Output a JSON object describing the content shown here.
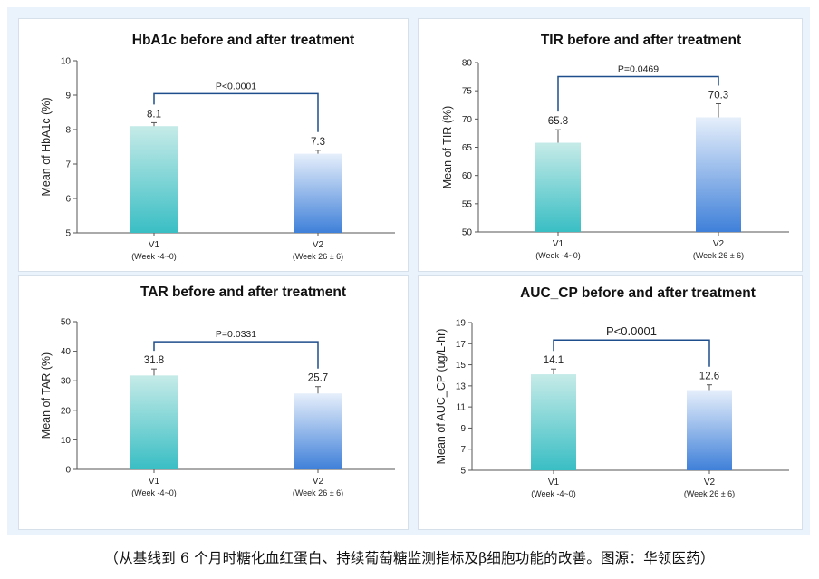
{
  "caption": "（从基线到 6 个月时糖化血红蛋白、持续葡萄糖监测指标及β细胞功能的改善。图源：华领医药）",
  "colors": {
    "v1_top": "#c6ebe8",
    "v1_bottom": "#39bec4",
    "v2_top": "#e6effb",
    "v2_bottom": "#3f80d9",
    "bracket": "#1f4e8c",
    "axis": "#555555",
    "text": "#222222"
  },
  "chart_data": [
    {
      "type": "bar",
      "title": "HbA1c before and after treatment",
      "ylabel": "Mean of HbA1c (%)",
      "ylim": [
        5,
        10
      ],
      "yticks": [
        "5",
        "6",
        "7",
        "8",
        "9",
        "10"
      ],
      "categories": [
        "V1",
        "V2"
      ],
      "category_sublabels": [
        "(Week -4~0)",
        "(Week 26 ± 6)"
      ],
      "values": [
        8.1,
        7.3
      ],
      "value_labels": [
        "8.1",
        "7.3"
      ],
      "error": [
        0.1,
        0.1
      ],
      "p_value": "P<0.0001"
    },
    {
      "type": "bar",
      "title": "TIR before and after treatment",
      "ylabel": "Mean of TIR (%)",
      "ylim": [
        50,
        80
      ],
      "yticks": [
        "50",
        "55",
        "60",
        "65",
        "70",
        "75",
        "80"
      ],
      "categories": [
        "V1",
        "V2"
      ],
      "category_sublabels": [
        "(Week -4~0)",
        "(Week 26 ± 6)"
      ],
      "values": [
        65.8,
        70.3
      ],
      "value_labels": [
        "65.8",
        "70.3"
      ],
      "error": [
        2.3,
        2.4
      ],
      "p_value": "P=0.0469"
    },
    {
      "type": "bar",
      "title": "TAR before and after treatment",
      "ylabel": "Mean of TAR (%)",
      "ylim": [
        0,
        50
      ],
      "yticks": [
        "0",
        "10",
        "20",
        "30",
        "40",
        "50"
      ],
      "categories": [
        "V1",
        "V2"
      ],
      "category_sublabels": [
        "(Week -4~0)",
        "(Week 26 ± 6)"
      ],
      "values": [
        31.8,
        25.7
      ],
      "value_labels": [
        "31.8",
        "25.7"
      ],
      "error": [
        2.2,
        2.3
      ],
      "p_value": "P=0.0331"
    },
    {
      "type": "bar",
      "title": "AUC_CP before and after treatment",
      "ylabel": "Mean of AUC_CP (ug/L-hr)",
      "ylim": [
        5,
        19
      ],
      "yticks": [
        "5",
        "7",
        "9",
        "11",
        "13",
        "15",
        "17",
        "19"
      ],
      "categories": [
        "V1",
        "V2"
      ],
      "category_sublabels": [
        "(Week -4~0)",
        "(Week 26 ± 6)"
      ],
      "values": [
        14.1,
        12.6
      ],
      "value_labels": [
        "14.1",
        "12.6"
      ],
      "error": [
        0.5,
        0.5
      ],
      "p_value": "P<0.0001"
    }
  ]
}
